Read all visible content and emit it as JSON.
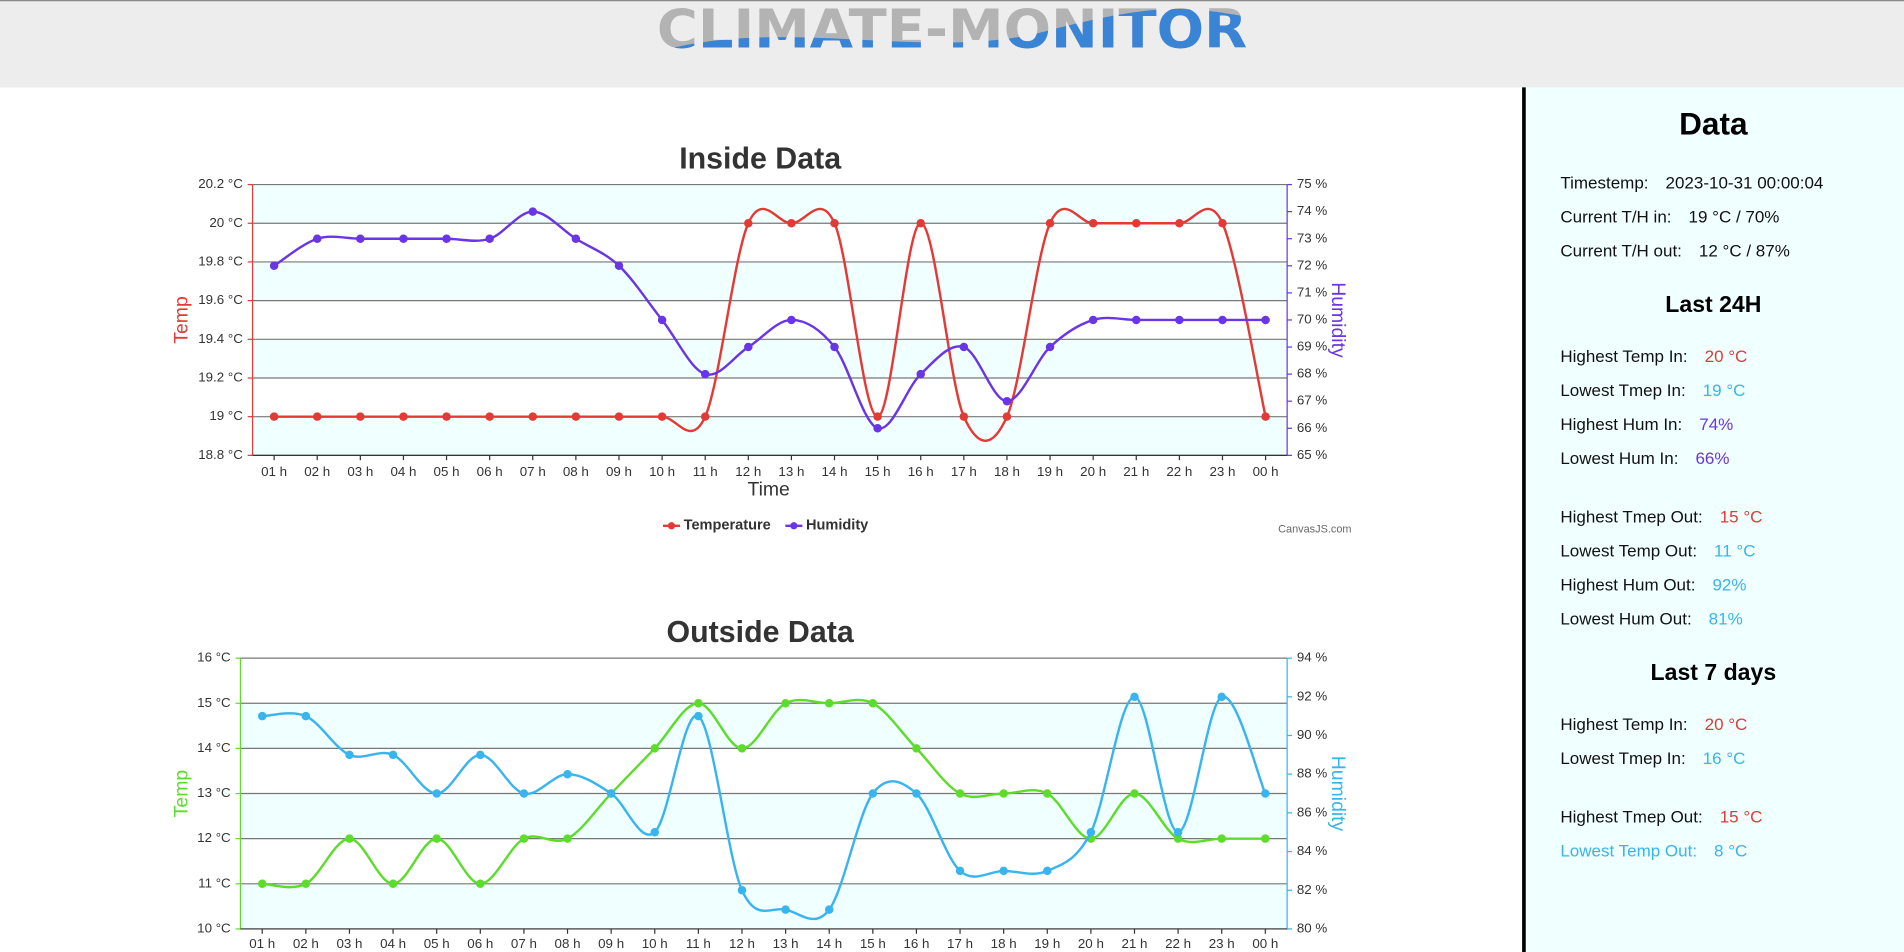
{
  "header": {
    "title": "CLIMATE-MONITOR"
  },
  "chart_data": [
    {
      "type": "line",
      "title": "Inside Data",
      "x_label": "Time",
      "y_label": "Temp",
      "y2_label": "Humidity",
      "credit": "CanvasJS.com",
      "categories": [
        "01 h",
        "02 h",
        "03 h",
        "04 h",
        "05 h",
        "06 h",
        "07 h",
        "08 h",
        "09 h",
        "10 h",
        "11 h",
        "12 h",
        "13 h",
        "14 h",
        "15 h",
        "16 h",
        "17 h",
        "18 h",
        "19 h",
        "20 h",
        "21 h",
        "22 h",
        "23 h",
        "00 h"
      ],
      "series": [
        {
          "name": "Temperature",
          "color": "#e53935",
          "values": [
            19,
            19,
            19,
            19,
            19,
            19,
            19,
            19,
            19,
            19,
            19,
            20,
            20,
            20,
            19,
            20,
            19,
            19,
            20,
            20,
            20,
            20,
            20,
            19
          ]
        },
        {
          "name": "Humidity",
          "color": "#6a35e6",
          "axis": "y2",
          "values": [
            72,
            73,
            73,
            73,
            73,
            73,
            74,
            73,
            72,
            70,
            68,
            69,
            70,
            69,
            66,
            68,
            69,
            67,
            69,
            70,
            70,
            70,
            70,
            70
          ]
        }
      ],
      "ylim": [
        18.8,
        20.2
      ],
      "yticks": [
        {
          "value": 18.8,
          "label": "18.8 °C"
        },
        {
          "value": 19,
          "label": "19 °C"
        },
        {
          "value": 19.2,
          "label": "19.2 °C"
        },
        {
          "value": 19.4,
          "label": "19.4 °C"
        },
        {
          "value": 19.6,
          "label": "19.6 °C"
        },
        {
          "value": 19.8,
          "label": "19.8 °C"
        },
        {
          "value": 20,
          "label": "20 °C"
        },
        {
          "value": 20.2,
          "label": "20.2 °C"
        }
      ],
      "y2lim": [
        65,
        75
      ],
      "y2ticks": [
        {
          "value": 65,
          "label": "65 %"
        },
        {
          "value": 66,
          "label": "66 %"
        },
        {
          "value": 67,
          "label": "67 %"
        },
        {
          "value": 68,
          "label": "68 %"
        },
        {
          "value": 69,
          "label": "69 %"
        },
        {
          "value": 70,
          "label": "70 %"
        },
        {
          "value": 71,
          "label": "71 %"
        },
        {
          "value": 72,
          "label": "72 %"
        },
        {
          "value": 73,
          "label": "73 %"
        },
        {
          "value": 74,
          "label": "74 %"
        },
        {
          "value": 75,
          "label": "75 %"
        }
      ],
      "grid": true,
      "legend": "bottom"
    },
    {
      "type": "line",
      "title": "Outside Data",
      "y_label": "Temp",
      "y2_label": "Humidity",
      "categories": [
        "01 h",
        "02 h",
        "03 h",
        "04 h",
        "05 h",
        "06 h",
        "07 h",
        "08 h",
        "09 h",
        "10 h",
        "11 h",
        "12 h",
        "13 h",
        "14 h",
        "15 h",
        "16 h",
        "17 h",
        "18 h",
        "19 h",
        "20 h",
        "21 h",
        "22 h",
        "23 h",
        "00 h"
      ],
      "series": [
        {
          "color": "#5ddc2c",
          "values": [
            11,
            11,
            12,
            11,
            12,
            11,
            12,
            12,
            13,
            14,
            15,
            14,
            15,
            15,
            15,
            14,
            13,
            13,
            13,
            12,
            13,
            12,
            12,
            12
          ]
        },
        {
          "color": "#38b4ee",
          "axis": "y2",
          "values": [
            91,
            91,
            89,
            89,
            87,
            89,
            87,
            88,
            87,
            85,
            91,
            82,
            81,
            81,
            87,
            87,
            83,
            83,
            83,
            85,
            92,
            85,
            92,
            87
          ]
        }
      ],
      "ylim": [
        10,
        16
      ],
      "yticks": [
        {
          "value": 10,
          "label": "10 °C"
        },
        {
          "value": 11,
          "label": "11 °C"
        },
        {
          "value": 12,
          "label": "12 °C"
        },
        {
          "value": 13,
          "label": "13 °C"
        },
        {
          "value": 14,
          "label": "14 °C"
        },
        {
          "value": 15,
          "label": "15 °C"
        },
        {
          "value": 16,
          "label": "16 °C"
        }
      ],
      "y2lim": [
        80,
        94
      ],
      "y2ticks": [
        {
          "value": 80,
          "label": "80 %"
        },
        {
          "value": 82,
          "label": "82 %"
        },
        {
          "value": 84,
          "label": "84 %"
        },
        {
          "value": 86,
          "label": "86 %"
        },
        {
          "value": 88,
          "label": "88 %"
        },
        {
          "value": 90,
          "label": "90 %"
        },
        {
          "value": 92,
          "label": "92 %"
        },
        {
          "value": 94,
          "label": "94 %"
        }
      ],
      "grid": true
    }
  ],
  "sidebar": {
    "title": "Data",
    "current": [
      {
        "label": "Timestemp:",
        "value": "2023-10-31 00:00:04"
      },
      {
        "label": "Current T/H in:",
        "value": "19 °C / 70%"
      },
      {
        "label": "Current T/H out:",
        "value": "12 °C / 87%"
      }
    ],
    "sections": [
      {
        "title": "Last 24H",
        "groups": [
          [
            {
              "label": "Highest Temp In:",
              "value": "20 °C",
              "color": "#e53935"
            },
            {
              "label": "Lowest Tmep In:",
              "value": "19 °C",
              "color": "#38b4ee"
            },
            {
              "label": "Highest Hum In:",
              "value": "74%",
              "color": "#6a35e6"
            },
            {
              "label": "Lowest Hum In:",
              "value": "66%",
              "color": "#6a35e6"
            }
          ],
          [
            {
              "label": "Highest Tmep Out:",
              "value": "15 °C",
              "color": "#e53935"
            },
            {
              "label": "Lowest Temp Out:",
              "value": "11 °C",
              "color": "#38b4ee"
            },
            {
              "label": "Highest Hum Out:",
              "value": "92%",
              "color": "#38b4ee"
            },
            {
              "label": "Lowest Hum Out:",
              "value": "81%",
              "color": "#38b4ee"
            }
          ]
        ]
      },
      {
        "title": "Last 7 days",
        "groups": [
          [
            {
              "label": "Highest Temp In:",
              "value": "20 °C",
              "color": "#e53935"
            },
            {
              "label": "Lowest Tmep In:",
              "value": "16 °C",
              "color": "#38b4ee"
            }
          ],
          [
            {
              "label": "Highest Tmep Out:",
              "value": "15 °C",
              "color": "#e53935"
            },
            {
              "label": "Lowest Temp Out:",
              "value": "8 °C",
              "color": "#38b4ee",
              "label_color": "#38b4ee"
            }
          ]
        ]
      }
    ]
  }
}
